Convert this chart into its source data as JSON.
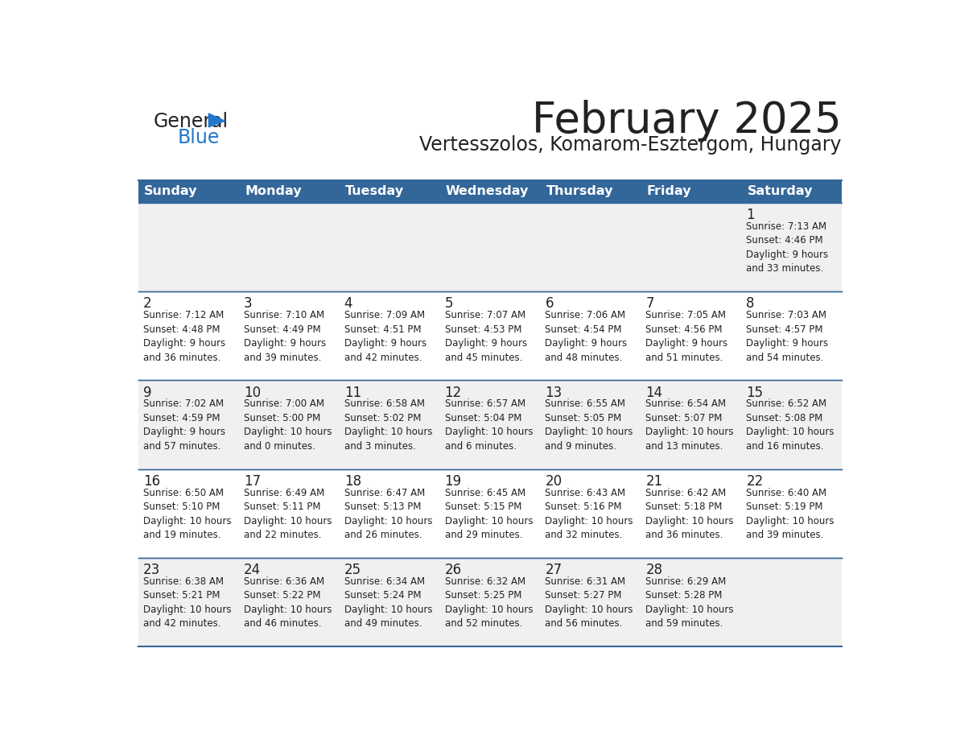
{
  "title": "February 2025",
  "subtitle": "Vertesszolos, Komarom-Esztergom, Hungary",
  "header_color": "#336699",
  "header_text_color": "#ffffff",
  "cell_bg_even": "#f0f0f0",
  "cell_bg_odd": "#ffffff",
  "border_color": "#336699",
  "days_of_week": [
    "Sunday",
    "Monday",
    "Tuesday",
    "Wednesday",
    "Thursday",
    "Friday",
    "Saturday"
  ],
  "title_color": "#222222",
  "subtitle_color": "#222222",
  "day_num_color": "#222222",
  "info_color": "#222222",
  "logo_general_color": "#222222",
  "logo_blue_color": "#2277cc",
  "weeks": [
    [
      {
        "day": null,
        "info": null
      },
      {
        "day": null,
        "info": null
      },
      {
        "day": null,
        "info": null
      },
      {
        "day": null,
        "info": null
      },
      {
        "day": null,
        "info": null
      },
      {
        "day": null,
        "info": null
      },
      {
        "day": 1,
        "info": "Sunrise: 7:13 AM\nSunset: 4:46 PM\nDaylight: 9 hours\nand 33 minutes."
      }
    ],
    [
      {
        "day": 2,
        "info": "Sunrise: 7:12 AM\nSunset: 4:48 PM\nDaylight: 9 hours\nand 36 minutes."
      },
      {
        "day": 3,
        "info": "Sunrise: 7:10 AM\nSunset: 4:49 PM\nDaylight: 9 hours\nand 39 minutes."
      },
      {
        "day": 4,
        "info": "Sunrise: 7:09 AM\nSunset: 4:51 PM\nDaylight: 9 hours\nand 42 minutes."
      },
      {
        "day": 5,
        "info": "Sunrise: 7:07 AM\nSunset: 4:53 PM\nDaylight: 9 hours\nand 45 minutes."
      },
      {
        "day": 6,
        "info": "Sunrise: 7:06 AM\nSunset: 4:54 PM\nDaylight: 9 hours\nand 48 minutes."
      },
      {
        "day": 7,
        "info": "Sunrise: 7:05 AM\nSunset: 4:56 PM\nDaylight: 9 hours\nand 51 minutes."
      },
      {
        "day": 8,
        "info": "Sunrise: 7:03 AM\nSunset: 4:57 PM\nDaylight: 9 hours\nand 54 minutes."
      }
    ],
    [
      {
        "day": 9,
        "info": "Sunrise: 7:02 AM\nSunset: 4:59 PM\nDaylight: 9 hours\nand 57 minutes."
      },
      {
        "day": 10,
        "info": "Sunrise: 7:00 AM\nSunset: 5:00 PM\nDaylight: 10 hours\nand 0 minutes."
      },
      {
        "day": 11,
        "info": "Sunrise: 6:58 AM\nSunset: 5:02 PM\nDaylight: 10 hours\nand 3 minutes."
      },
      {
        "day": 12,
        "info": "Sunrise: 6:57 AM\nSunset: 5:04 PM\nDaylight: 10 hours\nand 6 minutes."
      },
      {
        "day": 13,
        "info": "Sunrise: 6:55 AM\nSunset: 5:05 PM\nDaylight: 10 hours\nand 9 minutes."
      },
      {
        "day": 14,
        "info": "Sunrise: 6:54 AM\nSunset: 5:07 PM\nDaylight: 10 hours\nand 13 minutes."
      },
      {
        "day": 15,
        "info": "Sunrise: 6:52 AM\nSunset: 5:08 PM\nDaylight: 10 hours\nand 16 minutes."
      }
    ],
    [
      {
        "day": 16,
        "info": "Sunrise: 6:50 AM\nSunset: 5:10 PM\nDaylight: 10 hours\nand 19 minutes."
      },
      {
        "day": 17,
        "info": "Sunrise: 6:49 AM\nSunset: 5:11 PM\nDaylight: 10 hours\nand 22 minutes."
      },
      {
        "day": 18,
        "info": "Sunrise: 6:47 AM\nSunset: 5:13 PM\nDaylight: 10 hours\nand 26 minutes."
      },
      {
        "day": 19,
        "info": "Sunrise: 6:45 AM\nSunset: 5:15 PM\nDaylight: 10 hours\nand 29 minutes."
      },
      {
        "day": 20,
        "info": "Sunrise: 6:43 AM\nSunset: 5:16 PM\nDaylight: 10 hours\nand 32 minutes."
      },
      {
        "day": 21,
        "info": "Sunrise: 6:42 AM\nSunset: 5:18 PM\nDaylight: 10 hours\nand 36 minutes."
      },
      {
        "day": 22,
        "info": "Sunrise: 6:40 AM\nSunset: 5:19 PM\nDaylight: 10 hours\nand 39 minutes."
      }
    ],
    [
      {
        "day": 23,
        "info": "Sunrise: 6:38 AM\nSunset: 5:21 PM\nDaylight: 10 hours\nand 42 minutes."
      },
      {
        "day": 24,
        "info": "Sunrise: 6:36 AM\nSunset: 5:22 PM\nDaylight: 10 hours\nand 46 minutes."
      },
      {
        "day": 25,
        "info": "Sunrise: 6:34 AM\nSunset: 5:24 PM\nDaylight: 10 hours\nand 49 minutes."
      },
      {
        "day": 26,
        "info": "Sunrise: 6:32 AM\nSunset: 5:25 PM\nDaylight: 10 hours\nand 52 minutes."
      },
      {
        "day": 27,
        "info": "Sunrise: 6:31 AM\nSunset: 5:27 PM\nDaylight: 10 hours\nand 56 minutes."
      },
      {
        "day": 28,
        "info": "Sunrise: 6:29 AM\nSunset: 5:28 PM\nDaylight: 10 hours\nand 59 minutes."
      },
      {
        "day": null,
        "info": null
      }
    ]
  ]
}
